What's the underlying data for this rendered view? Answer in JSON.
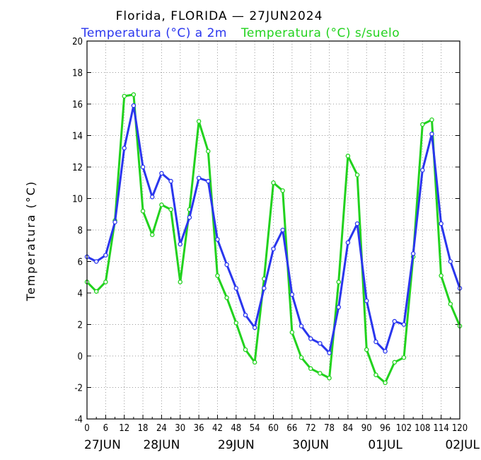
{
  "chart_data": {
    "type": "line",
    "title": "Florida, FLORIDA — 27JUN2024",
    "ylabel": "Temperatura (°C)",
    "ylim": [
      -4,
      20
    ],
    "xlim": [
      0,
      120
    ],
    "grid": true,
    "yticks": [
      -4,
      -2,
      0,
      2,
      4,
      6,
      8,
      10,
      12,
      14,
      16,
      18,
      20
    ],
    "xticks": [
      0,
      6,
      12,
      18,
      24,
      30,
      36,
      42,
      48,
      54,
      60,
      66,
      72,
      78,
      84,
      90,
      96,
      102,
      108,
      114,
      120
    ],
    "date_labels": [
      {
        "x": 0,
        "label": "27JUN"
      },
      {
        "x": 24,
        "label": "28JUN"
      },
      {
        "x": 48,
        "label": "29JUN"
      },
      {
        "x": 72,
        "label": "30JUN"
      },
      {
        "x": 96,
        "label": "01JUL"
      },
      {
        "x": 120,
        "label": "02JUL"
      }
    ],
    "x": [
      0,
      3,
      6,
      9,
      12,
      15,
      18,
      21,
      24,
      27,
      30,
      33,
      36,
      39,
      42,
      45,
      48,
      51,
      54,
      57,
      60,
      63,
      66,
      69,
      72,
      75,
      78,
      81,
      84,
      87,
      90,
      93,
      96,
      99,
      102,
      105,
      108,
      111,
      114,
      117,
      120
    ],
    "series": [
      {
        "name": "Temperatura (°C) a 2m",
        "color": "#2a36ee",
        "values": [
          6.3,
          6.0,
          6.4,
          8.5,
          13.2,
          15.9,
          12.0,
          10.1,
          11.6,
          11.1,
          7.1,
          8.8,
          11.3,
          11.1,
          7.4,
          5.8,
          4.3,
          2.6,
          1.8,
          4.3,
          6.8,
          8.0,
          3.9,
          1.9,
          1.1,
          0.8,
          0.2,
          3.1,
          7.2,
          8.4,
          3.5,
          0.9,
          0.3,
          2.2,
          2.0,
          6.5,
          11.8,
          14.1,
          8.4,
          6.0,
          4.3
        ]
      },
      {
        "name": "Temperatura (°C) s/suelo",
        "color": "#22d21e",
        "values": [
          4.7,
          4.1,
          4.7,
          8.6,
          16.5,
          16.6,
          9.2,
          7.7,
          9.6,
          9.3,
          4.7,
          9.3,
          14.9,
          13.0,
          5.1,
          3.7,
          2.1,
          0.4,
          -0.4,
          4.9,
          11.0,
          10.5,
          1.5,
          -0.1,
          -0.8,
          -1.1,
          -1.4,
          4.7,
          12.7,
          11.5,
          0.4,
          -1.2,
          -1.7,
          -0.4,
          -0.1,
          6.3,
          14.7,
          15.0,
          5.1,
          3.3,
          1.9
        ]
      }
    ]
  }
}
